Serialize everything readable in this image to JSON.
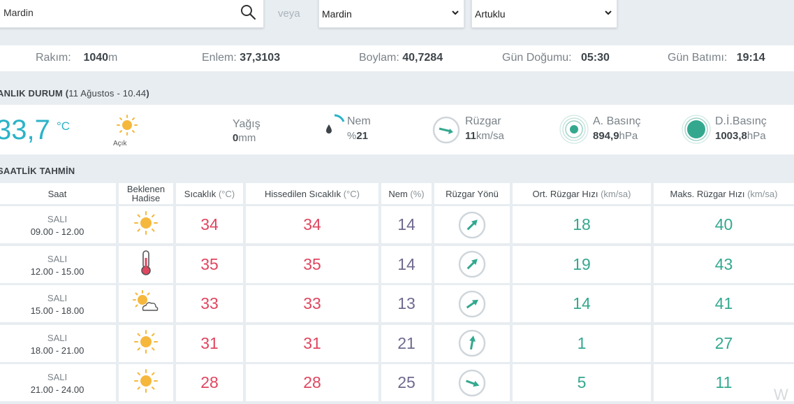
{
  "search": {
    "value": "Mardin"
  },
  "veya": "veya",
  "province": {
    "selected": "Mardin"
  },
  "district": {
    "selected": "Artuklu"
  },
  "info": {
    "altitude_label": "Rakım:",
    "altitude_value": "1040",
    "altitude_unit": "m",
    "lat_label": "Enlem:",
    "lat_value": "37,3103",
    "lon_label": "Boylam:",
    "lon_value": "40,7284",
    "sunrise_label": "Gün Doğumu:",
    "sunrise_value": "05:30",
    "sunset_label": "Gün Batımı:",
    "sunset_value": "19:14"
  },
  "current": {
    "title": "ANLIK DURUM (",
    "date": "11 Ağustos - 10.44",
    "title_end": ")",
    "temp": "33,7",
    "temp_unit": "°C",
    "condition": "Açık",
    "rain_label": "Yağış",
    "rain_value": "0",
    "rain_unit": "mm",
    "humidity_label": "Nem",
    "humidity_prefix": "%",
    "humidity_value": "21",
    "wind_label": "Rüzgar",
    "wind_value": "11",
    "wind_unit": "km/sa",
    "apressure_label": "A. Basınç",
    "apressure_value": "894,9",
    "apressure_unit": "hPa",
    "dpressure_label": "D.İ.Basınç",
    "dpressure_value": "1003,8",
    "dpressure_unit": "hPa"
  },
  "hourly": {
    "title": "SAATLİK TAHMİN",
    "headers": {
      "time": "Saat",
      "event": "Beklenen Hadise",
      "temp": "Sıcaklık",
      "temp_unit": "(°C)",
      "feels": "Hissedilen Sıcaklık",
      "feels_unit": "(°C)",
      "hum": "Nem",
      "hum_unit": "(%)",
      "wdir": "Rüzgar Yönü",
      "wavg": "Ort. Rüzgar Hızı",
      "wavg_unit": "(km/sa)",
      "wmax": "Maks. Rüzgar Hızı",
      "wmax_unit": "(km/sa)"
    },
    "rows": [
      {
        "day": "SALI",
        "time": "09.00 - 12.00",
        "icon": "sun-icon",
        "temp": "34",
        "feels": "34",
        "hum": "14",
        "wdir_deg": 45,
        "wavg": "18",
        "wmax": "40"
      },
      {
        "day": "SALI",
        "time": "12.00 - 15.00",
        "icon": "thermometer-icon",
        "temp": "35",
        "feels": "35",
        "hum": "14",
        "wdir_deg": 45,
        "wavg": "19",
        "wmax": "43"
      },
      {
        "day": "SALI",
        "time": "15.00 - 18.00",
        "icon": "partly-cloudy-icon",
        "temp": "33",
        "feels": "33",
        "hum": "13",
        "wdir_deg": 55,
        "wavg": "14",
        "wmax": "41"
      },
      {
        "day": "SALI",
        "time": "18.00 - 21.00",
        "icon": "sun-icon",
        "temp": "31",
        "feels": "31",
        "hum": "21",
        "wdir_deg": 10,
        "wavg": "1",
        "wmax": "27"
      },
      {
        "day": "SALI",
        "time": "21.00 - 24.00",
        "icon": "sun-icon",
        "temp": "28",
        "feels": "28",
        "hum": "25",
        "wdir_deg": 110,
        "wavg": "5",
        "wmax": "11"
      }
    ]
  },
  "colors": {
    "accent": "#2bb3c9",
    "temp_red": "#e0465f",
    "hum_purple": "#6e6a8f",
    "wind_green": "#33a88f",
    "sun_yellow": "#f5b83d"
  }
}
